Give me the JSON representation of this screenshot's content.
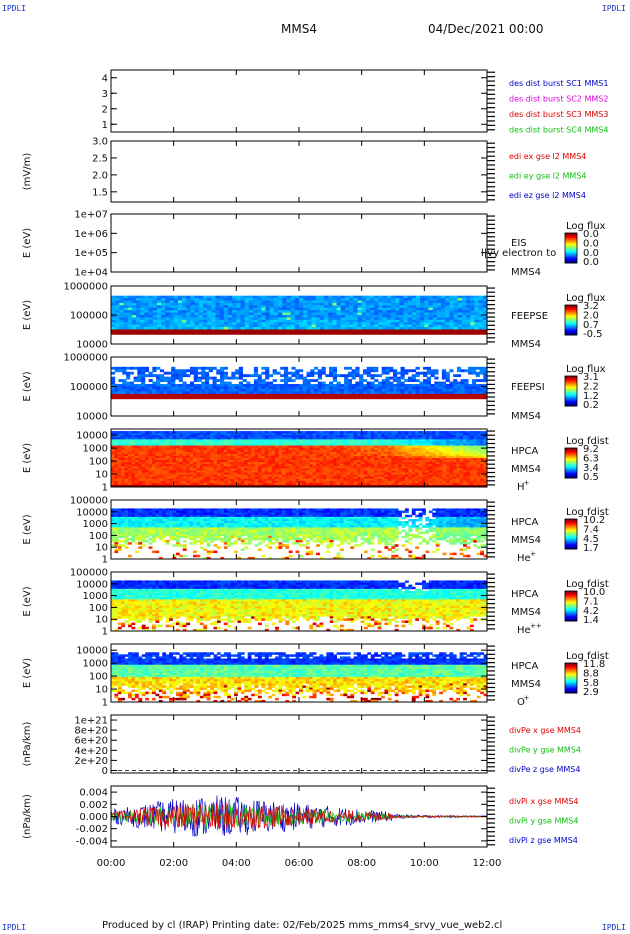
{
  "header": {
    "corner_label": "IPDLI",
    "title": "MMS4",
    "date": "04/Dec/2021 00:00"
  },
  "footer": {
    "text": "Produced by cl (IRAP)   Printing date: 02/Feb/2025   mms_mms4_srvy_vue_web2.cl"
  },
  "colors": {
    "red": "#e00000",
    "magenta": "#e000e0",
    "green": "#10c010",
    "blue": "#0000c8"
  },
  "chart_data": {
    "type": "heatmap",
    "x_axis": {
      "range": [
        "00:00",
        "12:00"
      ],
      "tick_labels": [
        "00:00",
        "02:00",
        "04:00",
        "06:00",
        "08:00",
        "10:00",
        "12:00"
      ]
    },
    "panels": [
      {
        "id": "burst",
        "ylabel": "",
        "ytick_labels": [
          "4",
          "3",
          "2",
          "1"
        ],
        "ylim": [
          0.5,
          4.5
        ],
        "legend": [
          {
            "text": "des dist burst SC1 MMS1",
            "color": "#0000c8"
          },
          {
            "text": "des dist burst SC2 MMS2",
            "color": "#e000e0"
          },
          {
            "text": "des dist burst SC3 MMS3",
            "color": "#e00000"
          },
          {
            "text": "des dist burst SC4 MMS4",
            "color": "#10c010"
          }
        ]
      },
      {
        "id": "edi",
        "ylabel": "(mV/m)",
        "ytick_labels": [
          "3.0",
          "2.5",
          "2.0",
          "1.5"
        ],
        "ylim": [
          1.2,
          3.0
        ],
        "legend": [
          {
            "text": "edi ex gse l2 MMS4",
            "color": "#e00000"
          },
          {
            "text": "edi ey gse l2 MMS4",
            "color": "#10c010"
          },
          {
            "text": "edi ez gse l2 MMS4",
            "color": "#0000c8"
          }
        ]
      },
      {
        "id": "eis",
        "ylabel": "E (eV)",
        "ytick_labels": [
          "1e+07",
          "1e+06",
          "1e+05",
          "1e+04"
        ],
        "ylim": [
          10000,
          10000000
        ],
        "log": true,
        "instrument": "EIS",
        "spacecraft": "MMS4",
        "overlay_text": "l|vy electron to",
        "colorbar": {
          "label": "Log flux",
          "ticks": [
            "0.0",
            "0.0",
            "0.0",
            "0.0"
          ]
        }
      },
      {
        "id": "feepse",
        "ylabel": "E (eV)",
        "ytick_labels": [
          "1000000",
          "100000",
          "10000"
        ],
        "ylim": [
          10000,
          1000000
        ],
        "log": true,
        "instrument": "FEEPSE",
        "spacecraft": "MMS4",
        "colorbar": {
          "label": "Log flux",
          "ticks": [
            "3.2",
            "2.0",
            "0.7",
            "-0.5"
          ]
        }
      },
      {
        "id": "feepsi",
        "ylabel": "E (eV)",
        "ytick_labels": [
          "1000000",
          "100000",
          "10000"
        ],
        "ylim": [
          10000,
          1000000
        ],
        "log": true,
        "instrument": "FEEPSI",
        "spacecraft": "MMS4",
        "colorbar": {
          "label": "Log flux",
          "ticks": [
            "3.1",
            "2.2",
            "1.2",
            "0.2"
          ]
        }
      },
      {
        "id": "hpca-h",
        "ylabel": "E (eV)",
        "ytick_labels": [
          "10000",
          "1000",
          "100",
          "10",
          "1"
        ],
        "ylim": [
          1,
          30000
        ],
        "log": true,
        "instrument": "HPCA",
        "spacecraft": "MMS4",
        "species": "H",
        "species_sup": "+",
        "colorbar": {
          "label": "Log fdist",
          "ticks": [
            "9.2",
            "6.3",
            "3.4",
            "0.5"
          ]
        }
      },
      {
        "id": "hpca-he",
        "ylabel": "E (eV)",
        "ytick_labels": [
          "100000",
          "10000",
          "1000",
          "100",
          "10",
          "1"
        ],
        "ylim": [
          1,
          100000
        ],
        "log": true,
        "instrument": "HPCA",
        "spacecraft": "MMS4",
        "species": "He",
        "species_sup": "+",
        "colorbar": {
          "label": "Log fdist",
          "ticks": [
            "10.2",
            "7.4",
            "4.5",
            "1.7"
          ]
        }
      },
      {
        "id": "hpca-hepp",
        "ylabel": "E (eV)",
        "ytick_labels": [
          "100000",
          "10000",
          "1000",
          "100",
          "10",
          "1"
        ],
        "ylim": [
          1,
          100000
        ],
        "log": true,
        "instrument": "HPCA",
        "spacecraft": "MMS4",
        "species": "He",
        "species_sup": "++",
        "colorbar": {
          "label": "Log fdist",
          "ticks": [
            "10.0",
            "7.1",
            "4.2",
            "1.4"
          ]
        }
      },
      {
        "id": "hpca-o",
        "ylabel": "E (eV)",
        "ytick_labels": [
          "10000",
          "1000",
          "100",
          "10",
          "1"
        ],
        "ylim": [
          1,
          30000
        ],
        "log": true,
        "instrument": "HPCA",
        "spacecraft": "MMS4",
        "species": "O",
        "species_sup": "+",
        "colorbar": {
          "label": "Log fdist",
          "ticks": [
            "11.8",
            "8.8",
            "5.8",
            "2.9"
          ]
        }
      },
      {
        "id": "divpe",
        "ylabel": "(nPa/km)",
        "ytick_labels": [
          "1e+21",
          "8e+20",
          "6e+20",
          "4e+20",
          "2e+20",
          "0"
        ],
        "ylim": [
          -5e+19,
          1.1e+21
        ],
        "legend": [
          {
            "text": "divPe x gse MMS4",
            "color": "#e00000"
          },
          {
            "text": "divPe y gse MMS4",
            "color": "#10c010"
          },
          {
            "text": "divPe z gse MMS4",
            "color": "#0000c8"
          }
        ]
      },
      {
        "id": "divpi",
        "ylabel": "(nPa/km)",
        "ytick_labels": [
          "0.004",
          "0.002",
          "0.000",
          "-0.002",
          "-0.004"
        ],
        "ylim": [
          -0.005,
          0.005
        ],
        "legend": [
          {
            "text": "divPi x gse MMS4",
            "color": "#e00000"
          },
          {
            "text": "divPi y gse MMS4",
            "color": "#10c010"
          },
          {
            "text": "divPi z gse MMS4",
            "color": "#0000c8"
          }
        ]
      }
    ]
  }
}
